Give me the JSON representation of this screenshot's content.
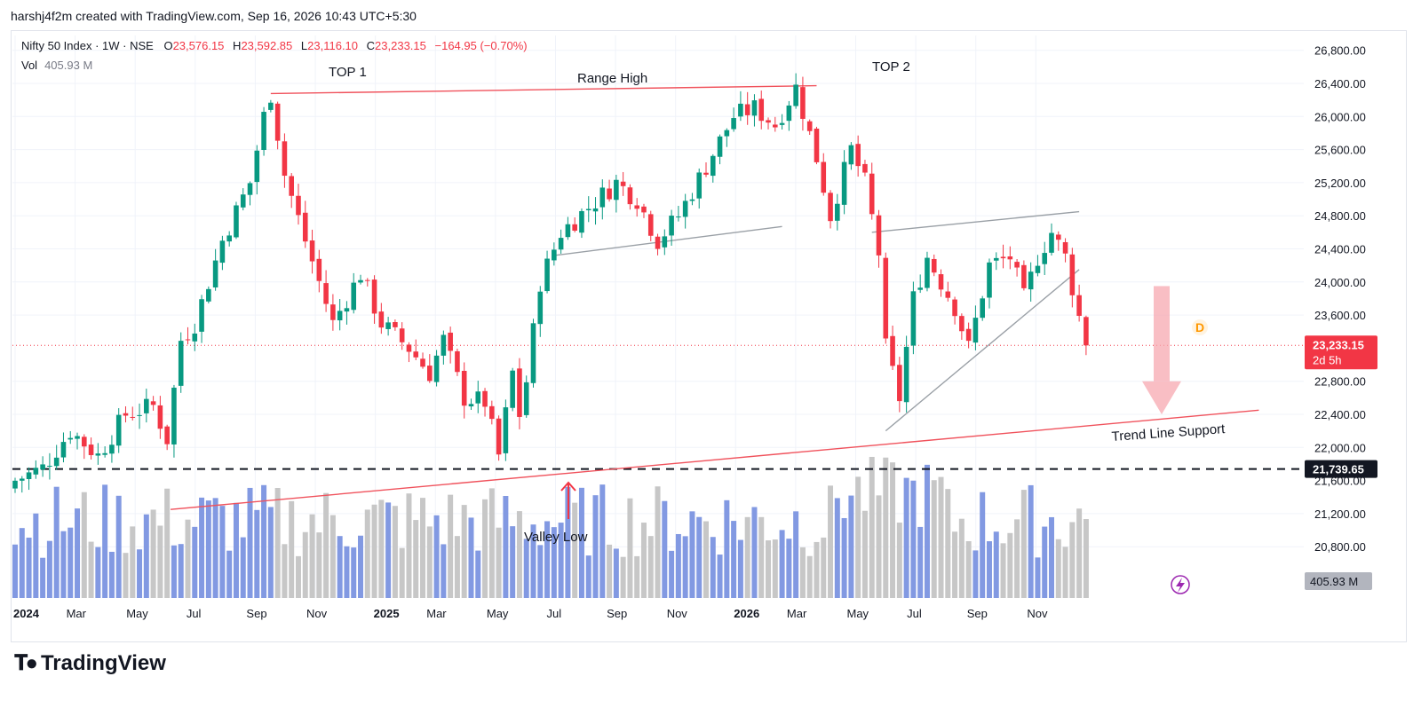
{
  "header": {
    "author_line": "harshj4f2m created with TradingView.com, Sep 16, 2026 10:43 UTC+5:30"
  },
  "legend": {
    "symbol": "Nifty 50 Index · 1W · NSE",
    "o_label": "O",
    "o_value": "23,576.15",
    "h_label": "H",
    "h_value": "23,592.85",
    "l_label": "L",
    "l_value": "23,116.10",
    "c_label": "C",
    "c_value": "23,233.15",
    "change": "−164.95 (−0.70%)",
    "vol_label": "Vol",
    "vol_value": "405.93 M"
  },
  "footer": {
    "brand": "TradingView"
  },
  "colors": {
    "up": "#089981",
    "down": "#f23645",
    "vol_up": "#7b93e0",
    "vol_down": "#c4c4c4",
    "annotation": "#f0525c",
    "trend_gray": "#9aa0a6"
  },
  "chart_data": {
    "type": "candlestick",
    "symbol": "Nifty 50 Index",
    "interval": "1W",
    "ylim": [
      20500,
      27000
    ],
    "y_ticks": [
      "26,800.00",
      "26,400.00",
      "26,000.00",
      "25,600.00",
      "25,200.00",
      "24,800.00",
      "24,400.00",
      "24,000.00",
      "23,600.00",
      "22,800.00",
      "22,400.00",
      "22,000.00",
      "21,200.00",
      "20,800.00"
    ],
    "y_tick_values": [
      26800,
      26400,
      26000,
      25600,
      25200,
      24800,
      24400,
      24000,
      23600,
      22800,
      22400,
      22000,
      21200,
      20800
    ],
    "x_ticks": [
      "2024",
      "Mar",
      "May",
      "Jul",
      "Sep",
      "Nov",
      "2025",
      "Mar",
      "May",
      "Jul",
      "Sep",
      "Nov",
      "2026",
      "Mar",
      "May",
      "Jul",
      "Sep",
      "Nov"
    ],
    "x_tick_months": [
      0,
      2,
      4,
      6,
      8,
      10,
      12,
      14,
      16,
      18,
      20,
      22,
      24,
      26,
      28,
      30,
      32,
      34
    ],
    "price_label": "23,233.15",
    "price_value": 23233.15,
    "countdown": "2d 5h",
    "level_label": "21,739.65",
    "level_value": 21739.65,
    "volume_label": "405.93 M",
    "event_marker": "D",
    "anchors": [
      {
        "w": 0,
        "v": 21600
      },
      {
        "w": 4,
        "v": 21750
      },
      {
        "w": 8,
        "v": 22200
      },
      {
        "w": 12,
        "v": 21900
      },
      {
        "w": 16,
        "v": 22400
      },
      {
        "w": 20,
        "v": 22500
      },
      {
        "w": 22,
        "v": 22100
      },
      {
        "w": 24,
        "v": 23300
      },
      {
        "w": 26,
        "v": 23500
      },
      {
        "w": 30,
        "v": 24500
      },
      {
        "w": 34,
        "v": 25200
      },
      {
        "w": 36,
        "v": 26000
      },
      {
        "w": 37,
        "v": 26277
      },
      {
        "w": 39,
        "v": 25300
      },
      {
        "w": 42,
        "v": 24500
      },
      {
        "w": 46,
        "v": 23500
      },
      {
        "w": 50,
        "v": 24100
      },
      {
        "w": 53,
        "v": 23500
      },
      {
        "w": 57,
        "v": 23200
      },
      {
        "w": 60,
        "v": 22900
      },
      {
        "w": 62,
        "v": 23300
      },
      {
        "w": 65,
        "v": 22600
      },
      {
        "w": 68,
        "v": 22550
      },
      {
        "w": 70,
        "v": 21900
      },
      {
        "w": 72,
        "v": 22900
      },
      {
        "w": 73,
        "v": 22400
      },
      {
        "w": 74,
        "v": 22800
      },
      {
        "w": 76,
        "v": 24000
      },
      {
        "w": 79,
        "v": 24600
      },
      {
        "w": 83,
        "v": 24900
      },
      {
        "w": 87,
        "v": 25200
      },
      {
        "w": 90,
        "v": 25000
      },
      {
        "w": 93,
        "v": 24500
      },
      {
        "w": 96,
        "v": 24800
      },
      {
        "w": 100,
        "v": 25400
      },
      {
        "w": 104,
        "v": 26000
      },
      {
        "w": 107,
        "v": 26100
      },
      {
        "w": 110,
        "v": 25900
      },
      {
        "w": 113,
        "v": 26350
      },
      {
        "w": 116,
        "v": 25500
      },
      {
        "w": 118,
        "v": 24800
      },
      {
        "w": 121,
        "v": 25600
      },
      {
        "w": 123,
        "v": 25200
      },
      {
        "w": 125,
        "v": 24350
      },
      {
        "w": 126,
        "v": 23200
      },
      {
        "w": 128,
        "v": 22600
      },
      {
        "w": 130,
        "v": 23800
      },
      {
        "w": 132,
        "v": 24300
      },
      {
        "w": 136,
        "v": 23700
      },
      {
        "w": 138,
        "v": 23200
      },
      {
        "w": 141,
        "v": 24200
      },
      {
        "w": 144,
        "v": 24300
      },
      {
        "w": 146,
        "v": 23800
      },
      {
        "w": 148,
        "v": 24300
      },
      {
        "w": 150,
        "v": 24600
      },
      {
        "w": 152,
        "v": 24300
      },
      {
        "w": 154,
        "v": 23576
      },
      {
        "w": 155,
        "v": 23233
      }
    ],
    "annotations": {
      "top1": "TOP 1",
      "top2": "TOP 2",
      "range_high": "Range High",
      "valley_low": "Valley Low",
      "trend_support": "Trend Line Support"
    },
    "lines": {
      "range_high": [
        {
          "w": 37,
          "v": 26277
        },
        {
          "w": 116,
          "v": 26372
        }
      ],
      "trend_support": [
        {
          "w": 22.5,
          "v": 21250
        },
        {
          "w": 180,
          "v": 22450
        }
      ],
      "gray_channel_low": [
        {
          "w": 78,
          "v": 24320
        },
        {
          "w": 111,
          "v": 24670
        }
      ],
      "gray_channel_high": [
        {
          "w": 124,
          "v": 24600
        },
        {
          "w": 154,
          "v": 24850
        }
      ],
      "gray_support": [
        {
          "w": 126,
          "v": 22200
        },
        {
          "w": 154,
          "v": 24150
        }
      ]
    }
  }
}
